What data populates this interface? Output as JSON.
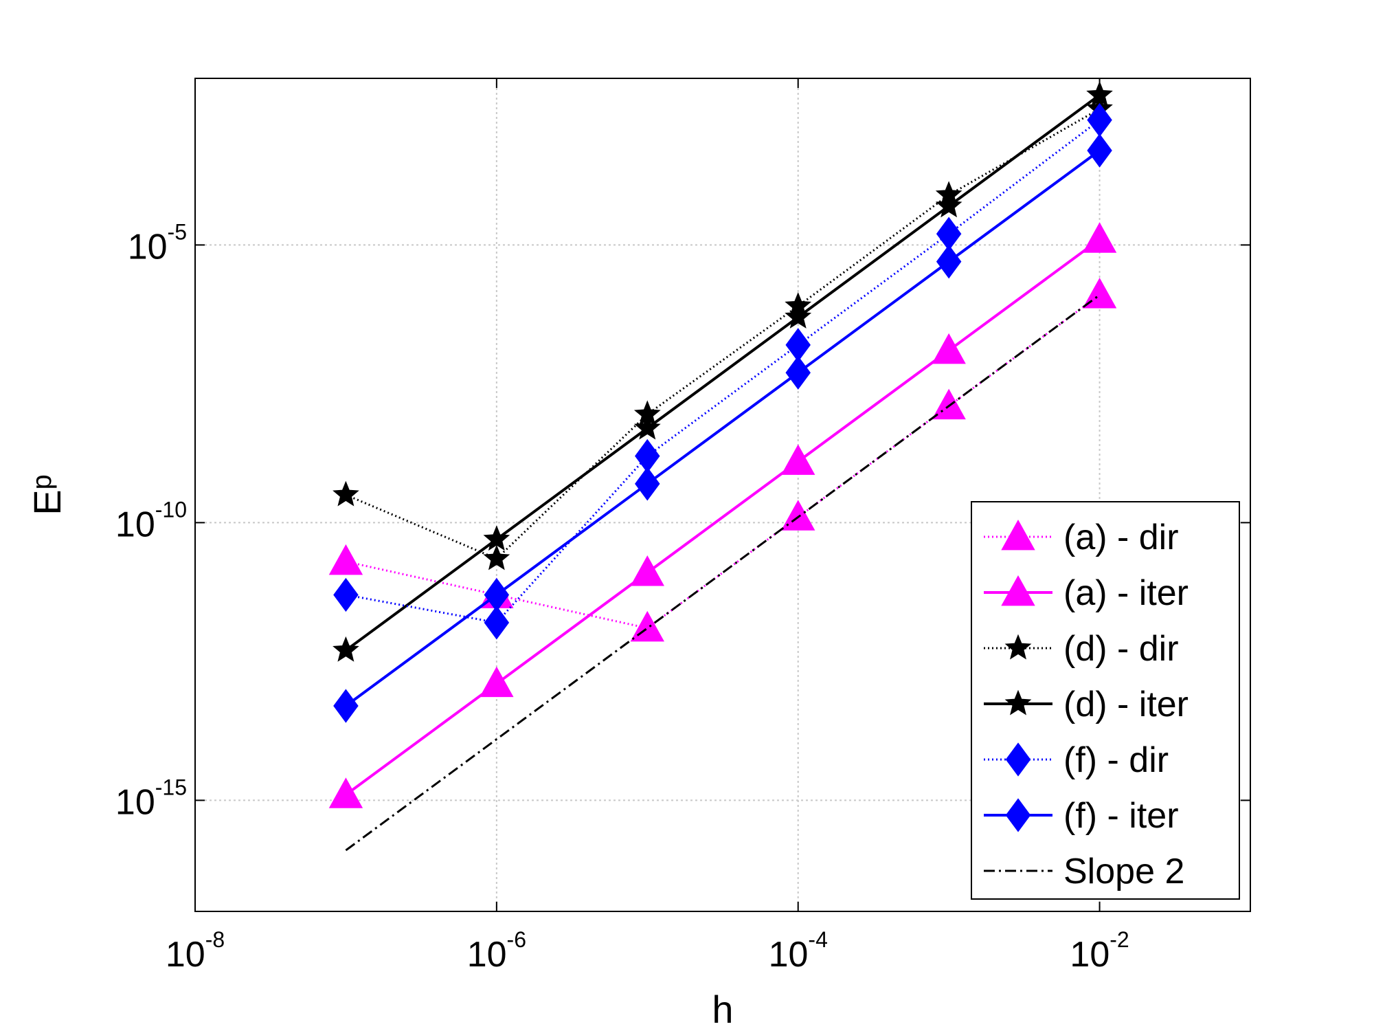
{
  "chart_data": {
    "type": "line",
    "xscale": "log",
    "yscale": "log",
    "xlabel": "h",
    "ylabel": "E",
    "ylabel_subscript": "p",
    "xlim_exp": [
      -8,
      -1
    ],
    "ylim_exp": [
      -17,
      -2
    ],
    "grid": true,
    "legend_position": "bottom-right",
    "xticks": [
      {
        "base": "10",
        "exp": "-8",
        "value_exp": -8
      },
      {
        "base": "10",
        "exp": "-6",
        "value_exp": -6
      },
      {
        "base": "10",
        "exp": "-4",
        "value_exp": -4
      },
      {
        "base": "10",
        "exp": "-2",
        "value_exp": -2
      }
    ],
    "yticks": [
      {
        "base": "10",
        "exp": "-5",
        "value_exp": -5
      },
      {
        "base": "10",
        "exp": "-10",
        "value_exp": -10
      },
      {
        "base": "10",
        "exp": "-15",
        "value_exp": -15
      }
    ],
    "x_exp": [
      -7,
      -6,
      -5,
      -4,
      -3,
      -2
    ],
    "series": [
      {
        "name": "(a) - dir",
        "label": "(a) - dir",
        "color": "#ff00ff",
        "style": "dotted",
        "marker": "triangle",
        "y_exp": [
          -10.7,
          -11.3,
          -11.9,
          -9.9,
          -7.9,
          -5.9
        ]
      },
      {
        "name": "(a) - iter",
        "label": "(a) - iter",
        "color": "#ff00ff",
        "style": "solid",
        "marker": "triangle",
        "y_exp": [
          -14.9,
          -12.9,
          -10.9,
          -8.9,
          -6.9,
          -4.9
        ]
      },
      {
        "name": "(d) - dir",
        "label": "(d) - dir",
        "color": "#000000",
        "style": "dotted",
        "marker": "star",
        "y_exp": [
          -9.5,
          -10.65,
          -8.05,
          -6.1,
          -4.1,
          -2.55
        ]
      },
      {
        "name": "(d) - iter",
        "label": "(d) - iter",
        "color": "#000000",
        "style": "solid",
        "marker": "star",
        "y_exp": [
          -12.3,
          -10.3,
          -8.3,
          -6.3,
          -4.3,
          -2.3
        ]
      },
      {
        "name": "(f) - dir",
        "label": "(f) - dir",
        "color": "#0000ff",
        "style": "dotted",
        "marker": "diamond",
        "y_exp": [
          -11.3,
          -11.8,
          -8.8,
          -6.8,
          -4.8,
          -2.75
        ]
      },
      {
        "name": "(f) - iter",
        "label": "(f) - iter",
        "color": "#0000ff",
        "style": "solid",
        "marker": "diamond",
        "y_exp": [
          -13.3,
          -11.3,
          -9.3,
          -7.3,
          -5.3,
          -3.3
        ]
      },
      {
        "name": "Slope 2",
        "label": "Slope 2",
        "color": "#000000",
        "style": "dashdot",
        "marker": "none",
        "x_exp": [
          -7,
          -2
        ],
        "y_exp": [
          -15.9,
          -5.9
        ]
      }
    ]
  }
}
